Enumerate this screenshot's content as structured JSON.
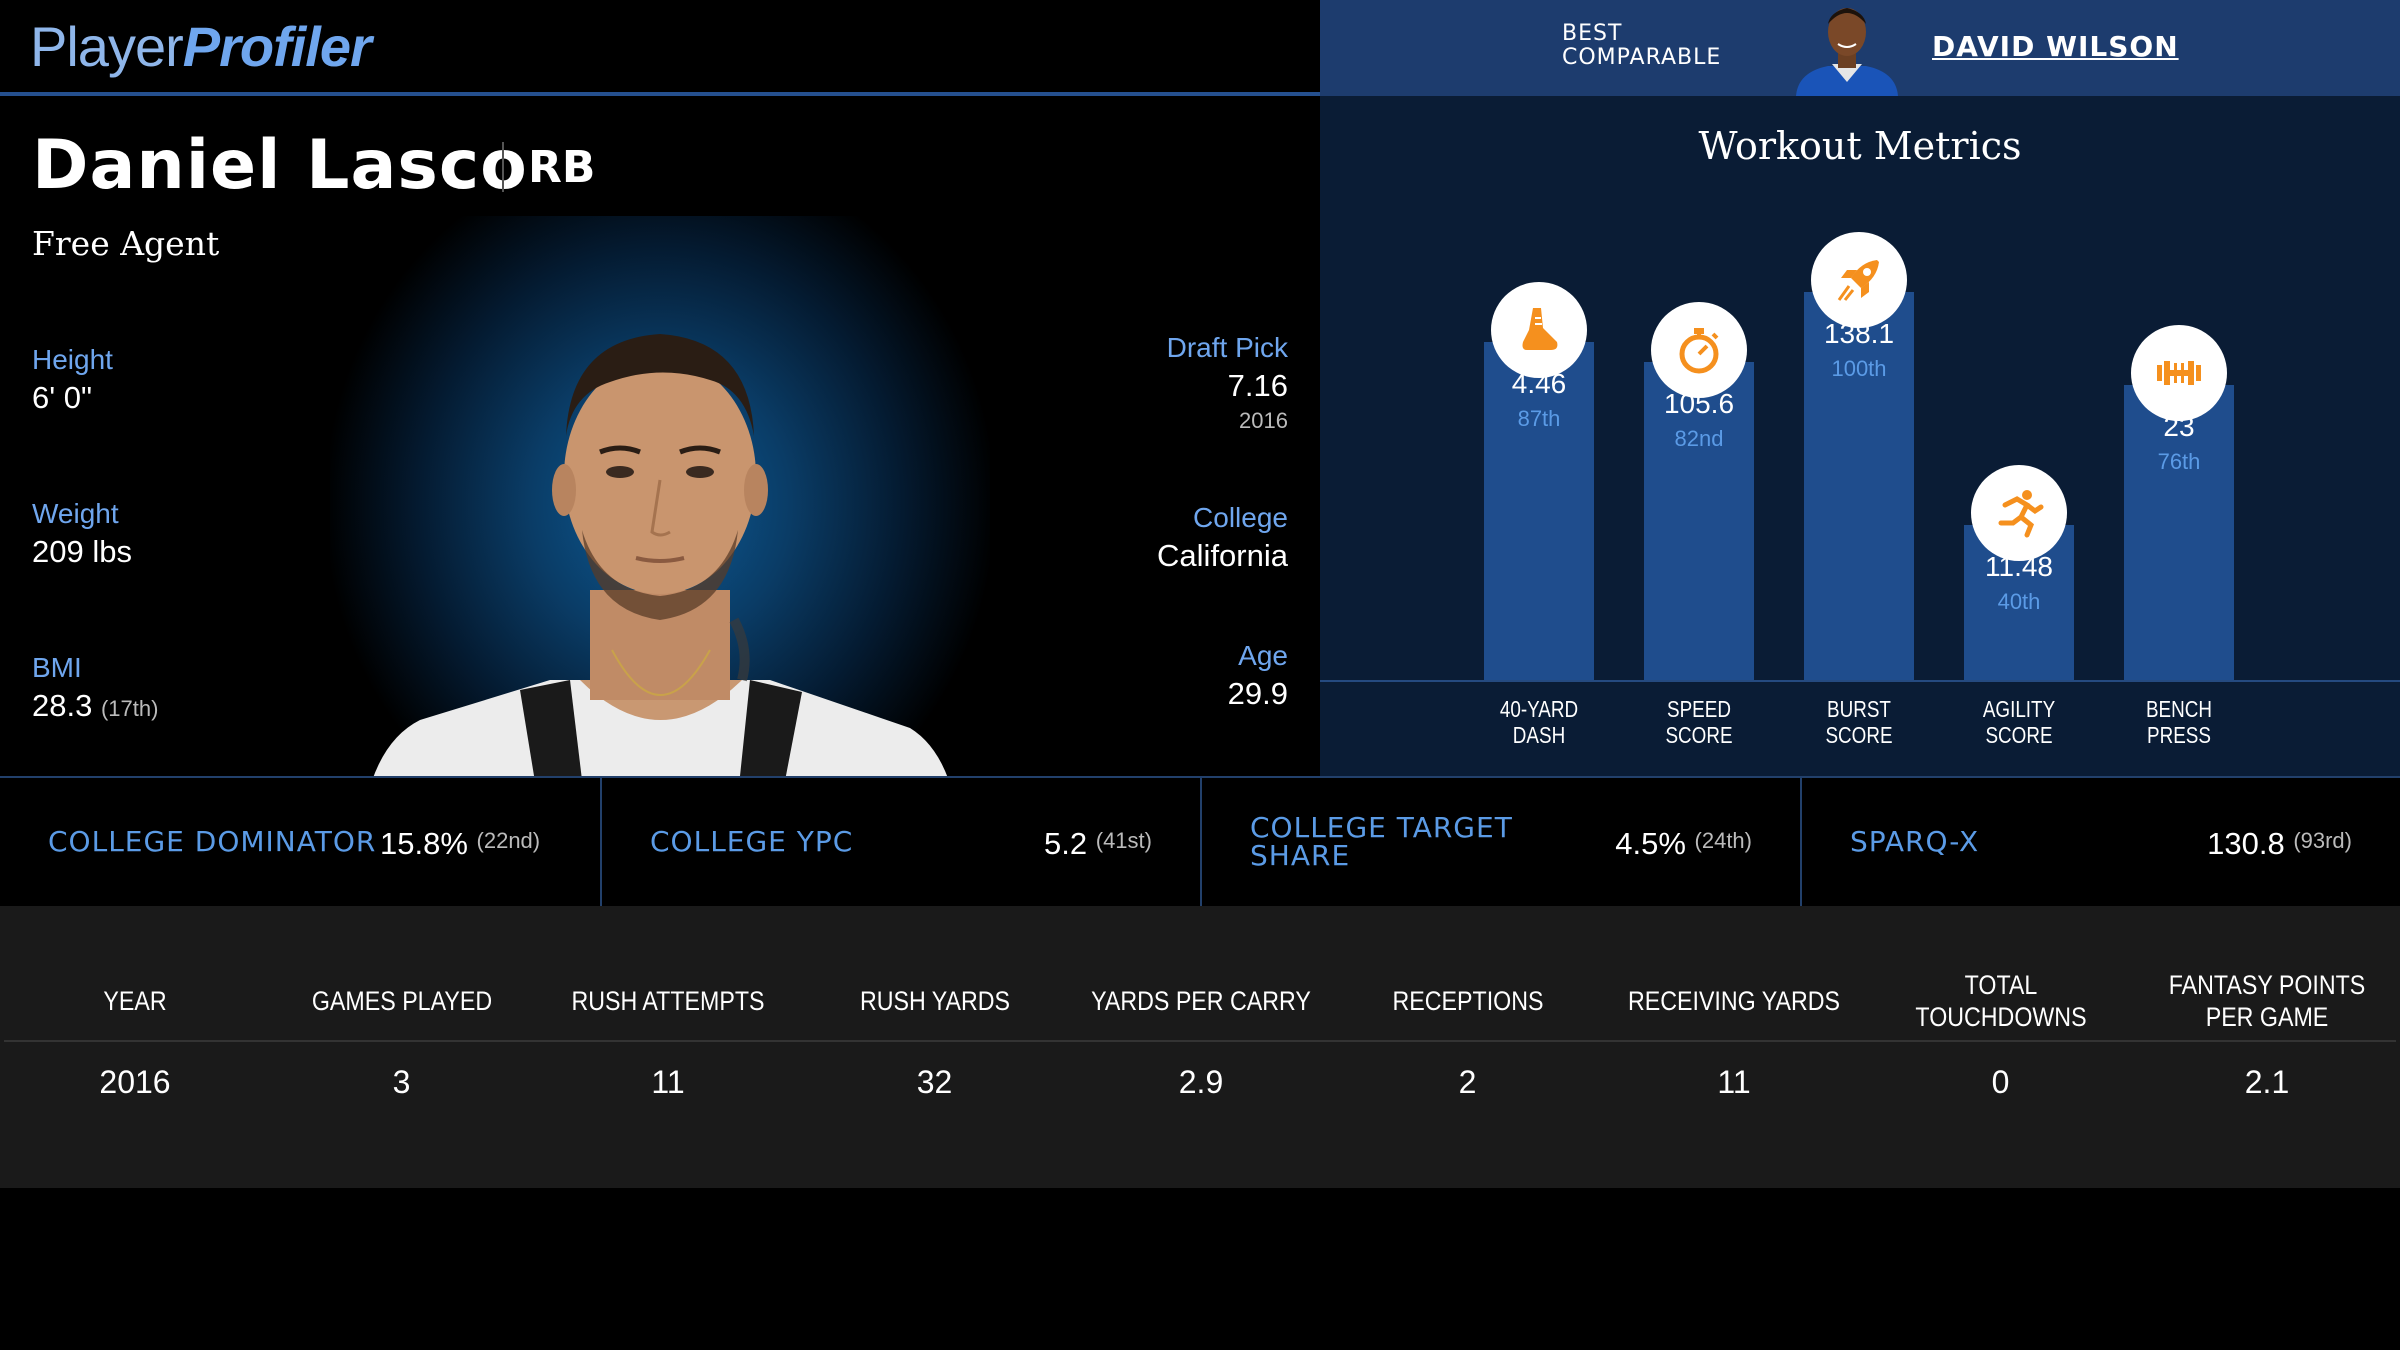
{
  "header": {
    "logo_part1": "Player",
    "logo_part2": "Profiler",
    "best_comparable_label_line1": "BEST",
    "best_comparable_label_line2": "COMPARABLE",
    "best_comparable_name": "DAVID WILSON"
  },
  "player": {
    "name": "Daniel Lasco",
    "position": "RB",
    "team": "Free Agent",
    "height_label": "Height",
    "height": "6' 0\"",
    "weight_label": "Weight",
    "weight": "209 lbs",
    "bmi_label": "BMI",
    "bmi": "28.3",
    "bmi_rank": "(17th)",
    "draft_pick_label": "Draft Pick",
    "draft_pick": "7.16",
    "draft_year": "2016",
    "college_label": "College",
    "college": "California",
    "age_label": "Age",
    "age": "29.9"
  },
  "workout": {
    "title": "Workout Metrics",
    "metrics": [
      {
        "label_line1": "40-YARD",
        "label_line2": "DASH",
        "value": "4.46",
        "percentile": "87th",
        "pct": 87,
        "icon": "shoe-icon"
      },
      {
        "label_line1": "SPEED",
        "label_line2": "SCORE",
        "value": "105.6",
        "percentile": "82nd",
        "pct": 82,
        "icon": "stopwatch-icon"
      },
      {
        "label_line1": "BURST",
        "label_line2": "SCORE",
        "value": "138.1",
        "percentile": "100th",
        "pct": 100,
        "icon": "rocket-icon"
      },
      {
        "label_line1": "AGILITY",
        "label_line2": "SCORE",
        "value": "11.48",
        "percentile": "40th",
        "pct": 40,
        "icon": "runner-icon"
      },
      {
        "label_line1": "BENCH",
        "label_line2": "PRESS",
        "value": "23",
        "percentile": "76th",
        "pct": 76,
        "icon": "dumbbell-icon"
      }
    ]
  },
  "college_metrics": [
    {
      "label_line1": "COLLEGE DOMINATOR",
      "label_line2": "",
      "value": "15.8%",
      "rank": "(22nd)"
    },
    {
      "label_line1": "COLLEGE YPC",
      "label_line2": "",
      "value": "5.2",
      "rank": "(41st)"
    },
    {
      "label_line1": "COLLEGE TARGET",
      "label_line2": "SHARE",
      "value": "4.5%",
      "rank": "(24th)"
    },
    {
      "label_line1": "SPARQ-X",
      "label_line2": "",
      "value": "130.8",
      "rank": "(93rd)"
    }
  ],
  "stats_table": {
    "headers": [
      "YEAR",
      "GAMES PLAYED",
      "RUSH ATTEMPTS",
      "RUSH YARDS",
      "YARDS PER CARRY",
      "RECEPTIONS",
      "RECEIVING YARDS",
      "TOTAL TOUCHDOWNS",
      "FANTASY POINTS PER GAME"
    ],
    "rows": [
      [
        "2016",
        "3",
        "11",
        "32",
        "2.9",
        "2",
        "11",
        "0",
        "2.1"
      ]
    ]
  },
  "colors": {
    "accent_blue": "#6fa6ee",
    "bar_blue": "#1f4d8d",
    "icon_orange": "#f5901e",
    "header_right_bg": "#1d3c6e"
  }
}
